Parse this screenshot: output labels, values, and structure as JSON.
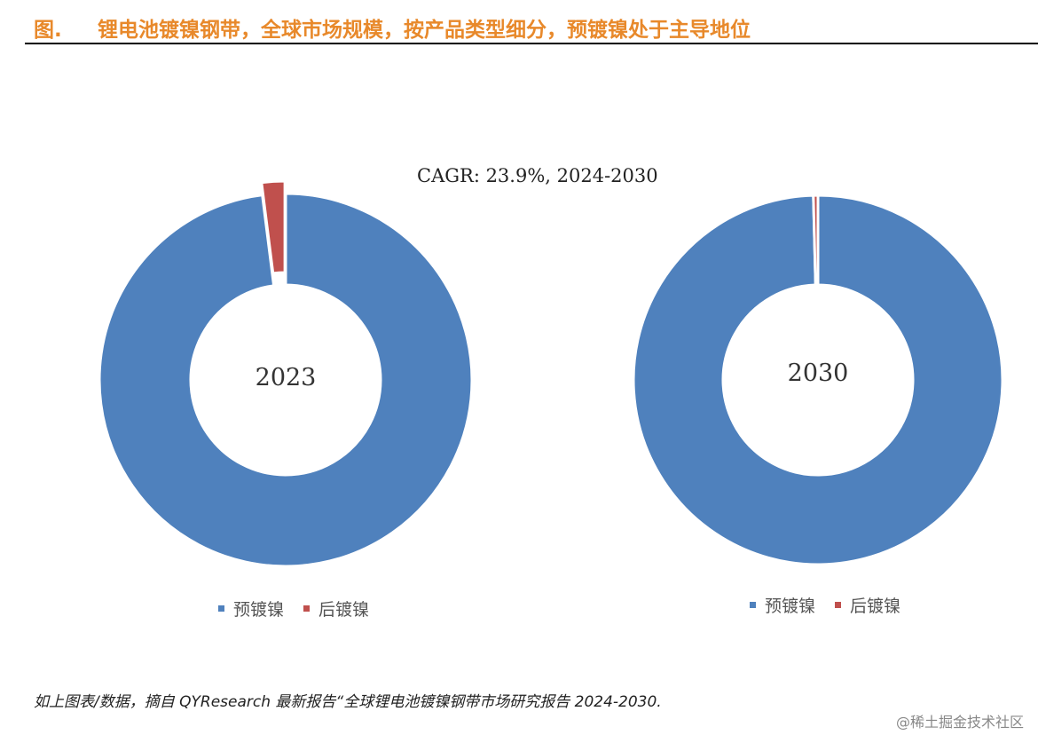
{
  "header": {
    "fig_label": "图.",
    "title": "锂电池镀镍钢带，全球市场规模，按产品类型细分，预镀镍处于主导地位"
  },
  "cagr_text": "CAGR:   23.9%, 2024-2030",
  "colors": {
    "blue": "#4f81bd",
    "red": "#c0504d",
    "accent": "#e8892b"
  },
  "chart_data": [
    {
      "type": "pie",
      "hole": true,
      "center_label": "2023",
      "categories": [
        "预镀镍",
        "后镀镍"
      ],
      "values": [
        98,
        2
      ],
      "legend_position": "bottom",
      "exploded": "后镀镍"
    },
    {
      "type": "pie",
      "hole": true,
      "center_label": "2030",
      "categories": [
        "预镀镍",
        "后镀镍"
      ],
      "values": [
        99.6,
        0.4
      ],
      "legend_position": "bottom"
    }
  ],
  "legend_labels": {
    "a": "预镀镍",
    "b": "后镀镍"
  },
  "footer": {
    "source": "如上图表/数据，摘自 QYResearch 最新报告“全球锂电池镀镍钢带市场研究报告 2024-2030.",
    "watermark": "@稀土掘金技术社区"
  }
}
